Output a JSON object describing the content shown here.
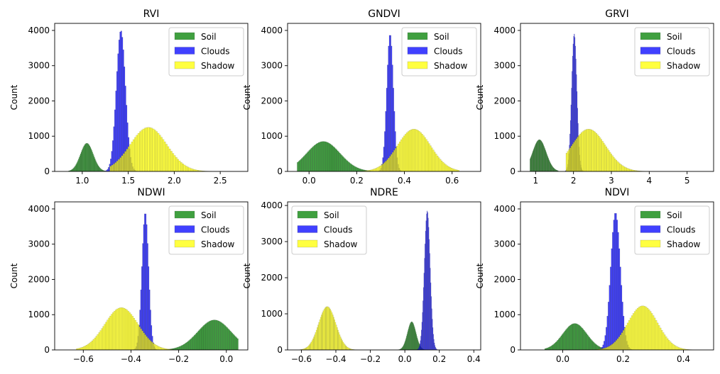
{
  "chart_data": [
    {
      "type": "bar",
      "title": "RVI",
      "ylabel": "Count",
      "xlim": [
        0.7,
        2.8
      ],
      "ylim": [
        0,
        4200
      ],
      "xticks": [
        1.0,
        1.5,
        2.0,
        2.5
      ],
      "xtick_labels": [
        "1.0",
        "1.5",
        "2.0",
        "2.5"
      ],
      "yticks": [
        0,
        1000,
        2000,
        3000,
        4000
      ],
      "ytick_labels": [
        "0",
        "1000",
        "2000",
        "3000",
        "4000"
      ],
      "legend_position": "top-right",
      "series": [
        {
          "name": "Soil",
          "color": "#008000",
          "peaks": [
            {
              "center": 1.05,
              "height": 800,
              "sigma": 0.07
            }
          ],
          "range": [
            0.85,
            1.35
          ]
        },
        {
          "name": "Clouds",
          "color": "#0000ff",
          "peaks": [
            {
              "center": 1.42,
              "height": 4000,
              "sigma": 0.05
            }
          ],
          "range": [
            0.95,
            1.75
          ]
        },
        {
          "name": "Shadow",
          "color": "#ffff00",
          "peaks": [
            {
              "center": 1.72,
              "height": 1250,
              "sigma": 0.2
            }
          ],
          "range": [
            1.3,
            2.55
          ]
        }
      ]
    },
    {
      "type": "bar",
      "title": "GNDVI",
      "ylabel": "Count",
      "xlim": [
        -0.09,
        0.72
      ],
      "ylim": [
        0,
        4200
      ],
      "xticks": [
        0.0,
        0.2,
        0.4,
        0.6
      ],
      "xtick_labels": [
        "0.0",
        "0.2",
        "0.4",
        "0.6"
      ],
      "yticks": [
        0,
        1000,
        2000,
        3000,
        4000
      ],
      "ytick_labels": [
        "0",
        "1000",
        "2000",
        "3000",
        "4000"
      ],
      "legend_position": "top-right",
      "series": [
        {
          "name": "Soil",
          "color": "#008000",
          "peaks": [
            {
              "center": 0.06,
              "height": 850,
              "sigma": 0.07
            }
          ],
          "range": [
            -0.05,
            0.26
          ]
        },
        {
          "name": "Clouds",
          "color": "#0000ff",
          "peaks": [
            {
              "center": 0.34,
              "height": 3900,
              "sigma": 0.014
            }
          ],
          "range": [
            0.12,
            0.4
          ]
        },
        {
          "name": "Shadow",
          "color": "#ffff00",
          "peaks": [
            {
              "center": 0.44,
              "height": 1200,
              "sigma": 0.07
            }
          ],
          "range": [
            0.22,
            0.63
          ]
        }
      ]
    },
    {
      "type": "bar",
      "title": "GRVI",
      "ylabel": "Count",
      "xlim": [
        0.6,
        5.7
      ],
      "ylim": [
        0,
        4200
      ],
      "xticks": [
        1,
        2,
        3,
        4,
        5
      ],
      "xtick_labels": [
        "1",
        "2",
        "3",
        "4",
        "5"
      ],
      "yticks": [
        0,
        1000,
        2000,
        3000,
        4000
      ],
      "ytick_labels": [
        "0",
        "1000",
        "2000",
        "3000",
        "4000"
      ],
      "legend_position": "top-right",
      "series": [
        {
          "name": "Soil",
          "color": "#008000",
          "peaks": [
            {
              "center": 1.1,
              "height": 900,
              "sigma": 0.18
            }
          ],
          "range": [
            0.85,
            1.6
          ]
        },
        {
          "name": "Clouds",
          "color": "#0000ff",
          "peaks": [
            {
              "center": 2.02,
              "height": 3900,
              "sigma": 0.07
            }
          ],
          "range": [
            1.3,
            2.3
          ]
        },
        {
          "name": "Shadow",
          "color": "#ffff00",
          "peaks": [
            {
              "center": 2.4,
              "height": 1200,
              "sigma": 0.45
            }
          ],
          "range": [
            1.8,
            4.1
          ]
        }
      ]
    },
    {
      "type": "bar",
      "title": "NDWI",
      "ylabel": "Count",
      "xlim": [
        -0.72,
        0.09
      ],
      "ylim": [
        0,
        4200
      ],
      "xticks": [
        -0.6,
        -0.4,
        -0.2,
        0.0
      ],
      "xtick_labels": [
        "−0.6",
        "−0.4",
        "−0.2",
        "0.0"
      ],
      "yticks": [
        0,
        1000,
        2000,
        3000,
        4000
      ],
      "ytick_labels": [
        "0",
        "1000",
        "2000",
        "3000",
        "4000"
      ],
      "legend_position": "top-right",
      "series": [
        {
          "name": "Soil",
          "color": "#008000",
          "peaks": [
            {
              "center": -0.05,
              "height": 850,
              "sigma": 0.07
            }
          ],
          "range": [
            -0.26,
            0.05
          ]
        },
        {
          "name": "Clouds",
          "color": "#0000ff",
          "peaks": [
            {
              "center": -0.34,
              "height": 3900,
              "sigma": 0.014
            }
          ],
          "range": [
            -0.4,
            -0.12
          ]
        },
        {
          "name": "Shadow",
          "color": "#ffff00",
          "peaks": [
            {
              "center": -0.44,
              "height": 1200,
              "sigma": 0.07
            }
          ],
          "range": [
            -0.63,
            -0.22
          ]
        }
      ]
    },
    {
      "type": "bar",
      "title": "NDRE",
      "ylabel": "Count",
      "xlim": [
        -0.68,
        0.44
      ],
      "ylim": [
        0,
        4100
      ],
      "xticks": [
        -0.6,
        -0.4,
        -0.2,
        0.0,
        0.2,
        0.4
      ],
      "xtick_labels": [
        "−0.6",
        "−0.4",
        "−0.2",
        "0.0",
        "0.2",
        "0.4"
      ],
      "yticks": [
        0,
        1000,
        2000,
        3000,
        4000
      ],
      "ytick_labels": [
        "0",
        "1000",
        "2000",
        "3000",
        "4000"
      ],
      "legend_position": "top-left",
      "series": [
        {
          "name": "Soil",
          "color": "#008000",
          "peaks": [
            {
              "center": 0.04,
              "height": 780,
              "sigma": 0.025
            }
          ],
          "range": [
            -0.04,
            0.15
          ]
        },
        {
          "name": "Clouds",
          "color": "#0000ff",
          "peaks": [
            {
              "center": 0.13,
              "height": 3850,
              "sigma": 0.017
            }
          ],
          "range": [
            0.02,
            0.23
          ]
        },
        {
          "name": "Shadow",
          "color": "#ffff00",
          "peaks": [
            {
              "center": -0.45,
              "height": 1200,
              "sigma": 0.05
            }
          ],
          "range": [
            -0.61,
            -0.26
          ]
        }
      ]
    },
    {
      "type": "bar",
      "title": "NDVI",
      "ylabel": "Count",
      "xlim": [
        -0.14,
        0.5
      ],
      "ylim": [
        0,
        4200
      ],
      "xticks": [
        0.0,
        0.2,
        0.4
      ],
      "xtick_labels": [
        "0.0",
        "0.2",
        "0.4"
      ],
      "yticks": [
        0,
        1000,
        2000,
        3000,
        4000
      ],
      "ytick_labels": [
        "0",
        "1000",
        "2000",
        "3000",
        "4000"
      ],
      "legend_position": "top-right",
      "series": [
        {
          "name": "Soil",
          "color": "#008000",
          "peaks": [
            {
              "center": 0.04,
              "height": 750,
              "sigma": 0.04
            }
          ],
          "range": [
            -0.06,
            0.15
          ]
        },
        {
          "name": "Clouds",
          "color": "#0000ff",
          "peaks": [
            {
              "center": 0.175,
              "height": 3900,
              "sigma": 0.016
            }
          ],
          "range": [
            0.0,
            0.25
          ]
        },
        {
          "name": "Shadow",
          "color": "#ffff00",
          "peaks": [
            {
              "center": 0.265,
              "height": 1250,
              "sigma": 0.05
            }
          ],
          "range": [
            0.1,
            0.43
          ]
        }
      ]
    }
  ]
}
